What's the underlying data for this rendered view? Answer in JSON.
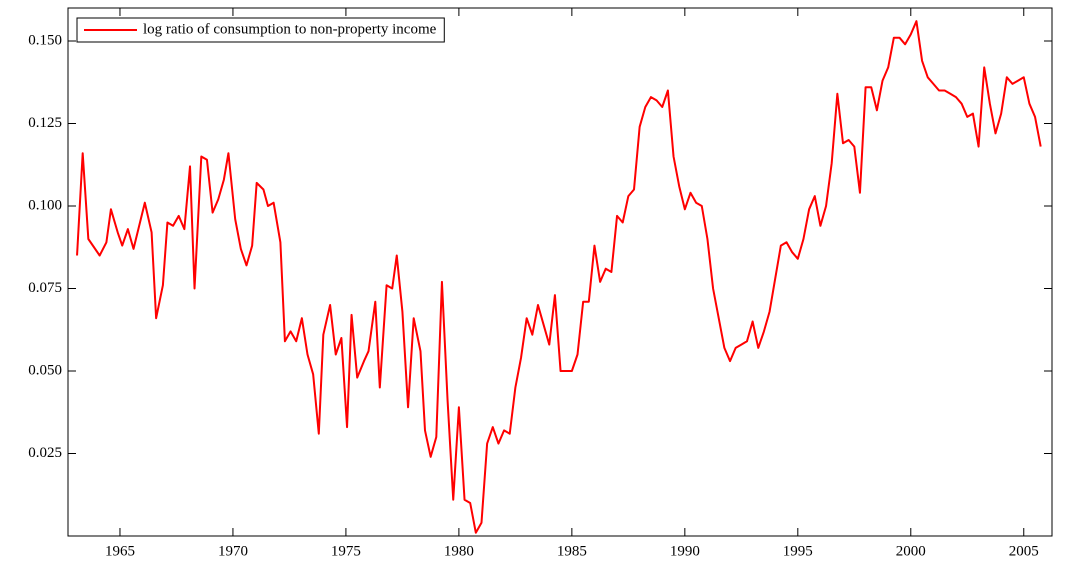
{
  "chart_data": {
    "type": "line",
    "x": [
      1963.1,
      1963.35,
      1963.6,
      1964.1,
      1964.4,
      1964.6,
      1964.9,
      1965.1,
      1965.35,
      1965.6,
      1966.1,
      1966.4,
      1966.6,
      1966.9,
      1967.1,
      1967.35,
      1967.6,
      1967.85,
      1968.1,
      1968.3,
      1968.6,
      1968.85,
      1969.1,
      1969.35,
      1969.6,
      1969.8,
      1970.1,
      1970.35,
      1970.6,
      1970.85,
      1971.05,
      1971.35,
      1971.55,
      1971.8,
      1972.1,
      1972.3,
      1972.55,
      1972.8,
      1973.05,
      1973.3,
      1973.55,
      1973.8,
      1974.0,
      1974.3,
      1974.55,
      1974.8,
      1975.05,
      1975.25,
      1975.5,
      1975.8,
      1976.0,
      1976.3,
      1976.5,
      1976.8,
      1977.05,
      1977.25,
      1977.5,
      1977.75,
      1978.0,
      1978.3,
      1978.5,
      1978.75,
      1979.0,
      1979.25,
      1979.5,
      1979.75,
      1980.0,
      1980.25,
      1980.5,
      1980.75,
      1981.0,
      1981.25,
      1981.5,
      1981.75,
      1982.0,
      1982.25,
      1982.5,
      1982.75,
      1983.0,
      1983.25,
      1983.5,
      1983.75,
      1984.0,
      1984.25,
      1984.5,
      1984.75,
      1985.0,
      1985.25,
      1985.5,
      1985.75,
      1986.0,
      1986.25,
      1986.5,
      1986.75,
      1987.0,
      1987.25,
      1987.5,
      1987.75,
      1988.0,
      1988.25,
      1988.5,
      1988.75,
      1989.0,
      1989.25,
      1989.5,
      1989.75,
      1990.0,
      1990.25,
      1990.5,
      1990.75,
      1991.0,
      1991.25,
      1991.5,
      1991.75,
      1992.0,
      1992.25,
      1992.5,
      1992.75,
      1993.0,
      1993.25,
      1993.5,
      1993.75,
      1994.0,
      1994.25,
      1994.5,
      1994.75,
      1995.0,
      1995.25,
      1995.5,
      1995.75,
      1996.0,
      1996.25,
      1996.5,
      1996.75,
      1997.0,
      1997.25,
      1997.5,
      1997.75,
      1998.0,
      1998.25,
      1998.5,
      1998.75,
      1999.0,
      1999.25,
      1999.5,
      1999.75,
      2000.0,
      2000.25,
      2000.5,
      2000.75,
      2001.0,
      2001.25,
      2001.5,
      2001.75,
      2002.0,
      2002.25,
      2002.5,
      2002.75,
      2003.0,
      2003.25,
      2003.5,
      2003.75,
      2004.0,
      2004.25,
      2004.5,
      2004.75,
      2005.0,
      2005.25,
      2005.5,
      2005.75
    ],
    "series": [
      {
        "name": "log ratio of consumption to non-property income",
        "color": "#ff0000",
        "values": [
          0.085,
          0.116,
          0.09,
          0.085,
          0.089,
          0.099,
          0.092,
          0.088,
          0.093,
          0.087,
          0.101,
          0.092,
          0.066,
          0.076,
          0.095,
          0.094,
          0.097,
          0.093,
          0.112,
          0.075,
          0.115,
          0.114,
          0.098,
          0.102,
          0.108,
          0.116,
          0.096,
          0.087,
          0.082,
          0.088,
          0.107,
          0.105,
          0.1,
          0.101,
          0.089,
          0.059,
          0.062,
          0.059,
          0.066,
          0.055,
          0.049,
          0.031,
          0.061,
          0.07,
          0.055,
          0.06,
          0.033,
          0.067,
          0.048,
          0.053,
          0.056,
          0.071,
          0.045,
          0.076,
          0.075,
          0.085,
          0.068,
          0.039,
          0.066,
          0.056,
          0.032,
          0.024,
          0.03,
          0.077,
          0.041,
          0.011,
          0.039,
          0.011,
          0.01,
          0.001,
          0.004,
          0.028,
          0.033,
          0.028,
          0.032,
          0.031,
          0.045,
          0.054,
          0.066,
          0.061,
          0.07,
          0.064,
          0.058,
          0.073,
          0.05,
          0.05,
          0.05,
          0.055,
          0.071,
          0.071,
          0.088,
          0.077,
          0.081,
          0.08,
          0.097,
          0.095,
          0.103,
          0.105,
          0.124,
          0.13,
          0.133,
          0.132,
          0.13,
          0.135,
          0.115,
          0.106,
          0.099,
          0.104,
          0.101,
          0.1,
          0.09,
          0.075,
          0.066,
          0.057,
          0.053,
          0.057,
          0.058,
          0.059,
          0.065,
          0.057,
          0.062,
          0.068,
          0.078,
          0.088,
          0.089,
          0.086,
          0.084,
          0.09,
          0.099,
          0.103,
          0.094,
          0.1,
          0.113,
          0.134,
          0.119,
          0.12,
          0.118,
          0.104,
          0.136,
          0.136,
          0.129,
          0.138,
          0.142,
          0.151,
          0.151,
          0.149,
          0.152,
          0.156,
          0.144,
          0.139,
          0.137,
          0.135,
          0.135,
          0.134,
          0.133,
          0.131,
          0.127,
          0.128,
          0.118,
          0.142,
          0.131,
          0.122,
          0.128,
          0.139,
          0.137,
          0.138,
          0.139,
          0.131,
          0.127,
          0.118
        ]
      }
    ],
    "xlim": [
      1962.7,
      2006.25
    ],
    "xticks": [
      1965,
      1970,
      1975,
      1980,
      1985,
      1990,
      1995,
      2000,
      2005
    ],
    "ylim": [
      0,
      0.16
    ],
    "yticks": [
      0.025,
      {
        "value": 0.05,
        "label": "0.050"
      },
      0.075,
      {
        "value": 0.1,
        "label": "0.100"
      },
      0.125,
      {
        "value": 0.15,
        "label": "0.150"
      }
    ],
    "legend": "top-left"
  }
}
